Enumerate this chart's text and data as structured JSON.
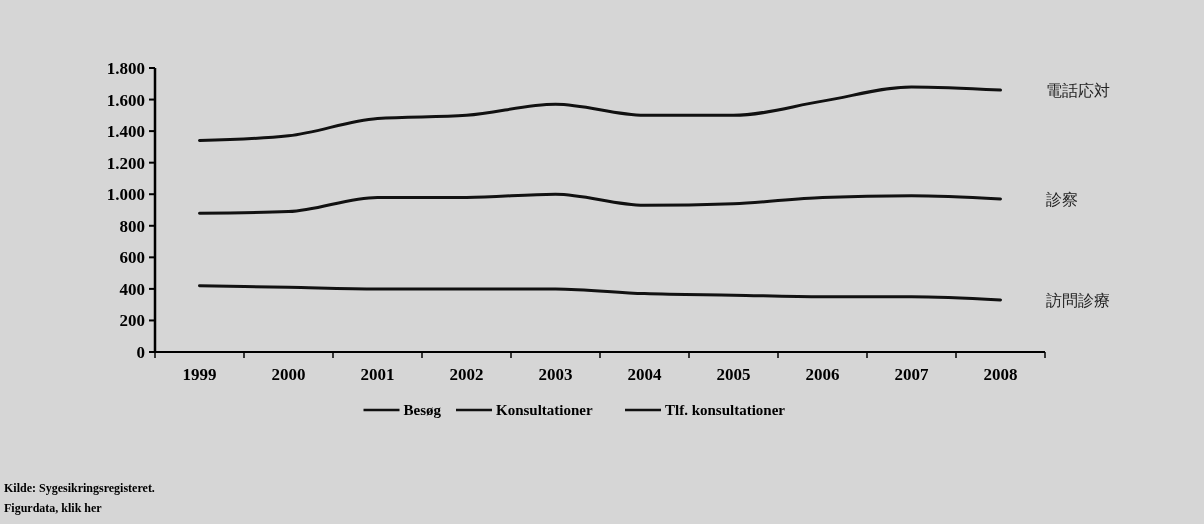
{
  "chart_data": {
    "type": "line",
    "categories": [
      "1999",
      "2000",
      "2001",
      "2002",
      "2003",
      "2004",
      "2005",
      "2006",
      "2007",
      "2008"
    ],
    "series": [
      {
        "name": "Besøg",
        "color": "#111111",
        "values": [
          420,
          410,
          400,
          400,
          400,
          370,
          360,
          350,
          350,
          330
        ]
      },
      {
        "name": "Konsultationer",
        "color": "#111111",
        "values": [
          880,
          890,
          980,
          980,
          1000,
          930,
          940,
          980,
          990,
          970
        ]
      },
      {
        "name": "Tlf. konsultationer",
        "color": "#111111",
        "values": [
          1340,
          1370,
          1480,
          1500,
          1570,
          1500,
          1500,
          1590,
          1680,
          1660
        ]
      }
    ],
    "ylim": [
      0,
      1800
    ],
    "yticks": [
      0,
      200,
      400,
      600,
      800,
      {
        "value": 1000,
        "label": "1.000"
      },
      {
        "value": 1200,
        "label": "1.200"
      },
      {
        "value": 1400,
        "label": "1.400"
      },
      {
        "value": 1600,
        "label": "1.600"
      },
      {
        "value": 1800,
        "label": "1.800"
      }
    ],
    "grid": false,
    "legend": "bottom",
    "marker": "none",
    "line_style": "solid",
    "annotations": [
      {
        "text": "電話応対",
        "x": "2008",
        "y": 1660
      },
      {
        "text": "診察",
        "x": "2008",
        "y": 970
      },
      {
        "text": "訪問診療",
        "x": "2008",
        "y": 330
      },
      "Kilde: Sygesikringsregisteret.",
      "Figurdata, klik her"
    ]
  }
}
